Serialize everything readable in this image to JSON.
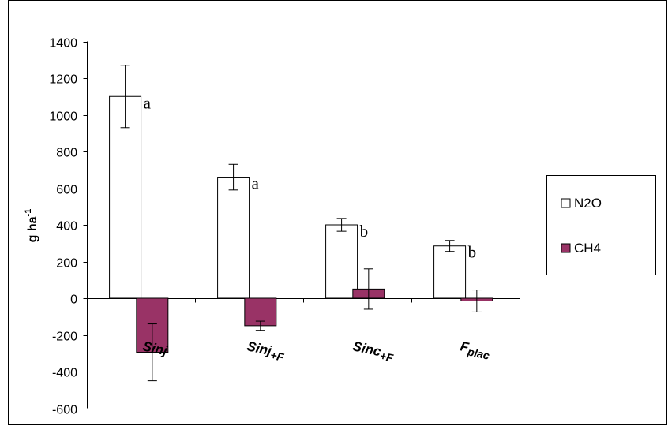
{
  "chart_data": {
    "type": "bar",
    "ylabel": "g ha",
    "ylabel_superscript": "-1",
    "ylim": [
      -600,
      1400
    ],
    "yticks": [
      1400,
      1200,
      1000,
      800,
      600,
      400,
      200,
      0,
      -200,
      -400,
      -600
    ],
    "grid": false,
    "legend_position": "right",
    "categories": [
      "Sinj",
      "Sinj+F",
      "Sinc+F",
      "Fplac"
    ],
    "category_labels": [
      {
        "main": "Sinj",
        "sub": ""
      },
      {
        "main": "Sinj",
        "sub": "+F"
      },
      {
        "main": "Sinc",
        "sub": "+F"
      },
      {
        "main": "F",
        "sub": "plac"
      }
    ],
    "series": [
      {
        "name": "N2O",
        "color": "#ffffff",
        "values": [
          1100,
          660,
          400,
          285
        ],
        "errors": [
          170,
          70,
          35,
          30
        ],
        "annotations": [
          "a",
          "a",
          "b",
          "b"
        ]
      },
      {
        "name": "CH4",
        "color": "#993366",
        "values": [
          -295,
          -150,
          50,
          -15
        ],
        "errors": [
          155,
          25,
          110,
          60
        ]
      }
    ]
  }
}
